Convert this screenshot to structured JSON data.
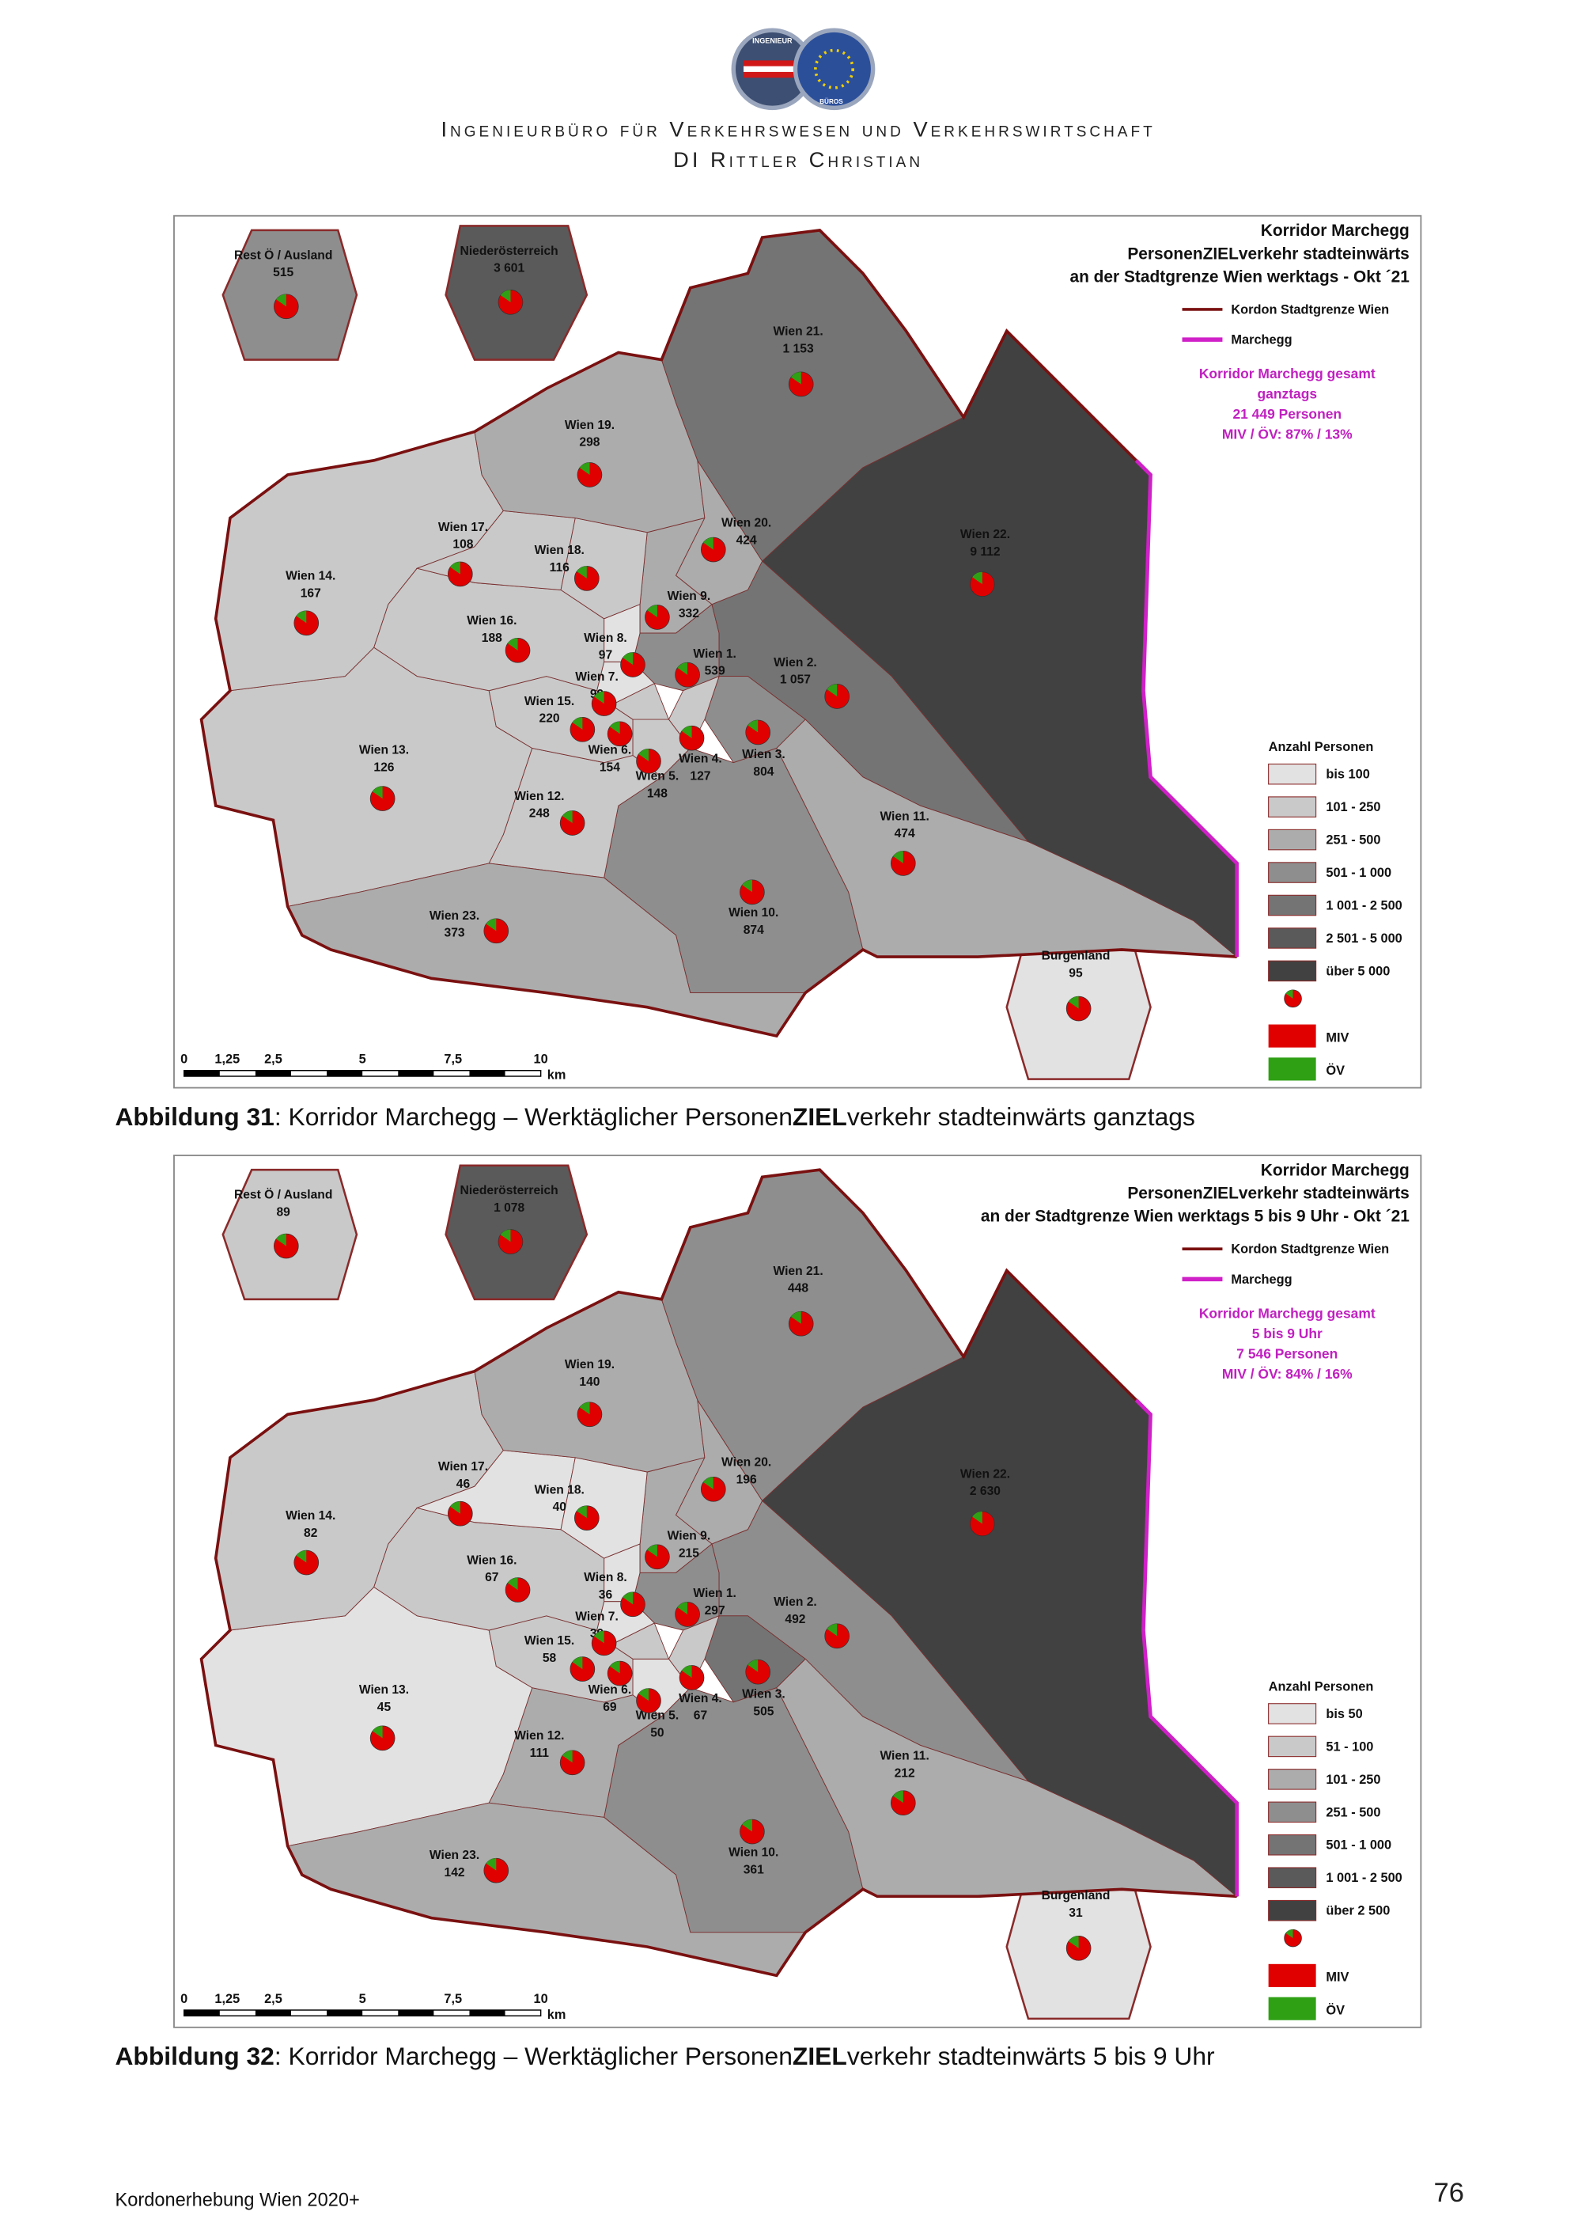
{
  "header": {
    "logo": [
      "INGENIEUR",
      "BÜROS"
    ],
    "title": "Ingenieurbüro für Verkehrswesen und Verkehrswirtschaft",
    "subtitle": "DI Rittler Christian"
  },
  "figures": [
    {
      "map": {
        "title": [
          "Korridor Marchegg",
          "PersonenZIELverkehr stadteinwärts",
          "an der Stadtgrenze Wien werktags - Okt ´21"
        ],
        "legend_lines": [
          {
            "label": "Kordon Stadtgrenze Wien",
            "color": "#7a1010"
          },
          {
            "label": "Marchegg",
            "color": "#d020c8"
          }
        ],
        "total": [
          "Korridor Marchegg gesamt",
          "ganztags",
          "21 449 Personen",
          "MIV / ÖV: 87% / 13%"
        ],
        "legend_title": "Anzahl Personen",
        "classes": [
          {
            "label": "bis 100",
            "color": "#e2e2e2"
          },
          {
            "label": "101 - 250",
            "color": "#c9c9c9"
          },
          {
            "label": "251 - 500",
            "color": "#acacac"
          },
          {
            "label": "501 - 1 000",
            "color": "#8e8e8e"
          },
          {
            "label": "1 001 - 2 500",
            "color": "#747474"
          },
          {
            "label": "2 501 - 5 000",
            "color": "#5a5a5a"
          },
          {
            "label": "über 5 000",
            "color": "#414141"
          }
        ],
        "pie_legend": [
          {
            "label": "MIV",
            "color": "#e00000"
          },
          {
            "label": "ÖV",
            "color": "#2fa014"
          }
        ],
        "scale": [
          "0",
          "1,25",
          "2,5",
          "5",
          "7,5",
          "10"
        ],
        "scale_unit": "km",
        "regions": [
          {
            "name": "Rest Ö / Ausland",
            "value": "515"
          },
          {
            "name": "Niederösterreich",
            "value": "3 601"
          },
          {
            "name": "Burgenland",
            "value": "95"
          },
          {
            "name": "Wien 1.",
            "value": "539"
          },
          {
            "name": "Wien 2.",
            "value": "1 057"
          },
          {
            "name": "Wien 3.",
            "value": "804"
          },
          {
            "name": "Wien 4.",
            "value": "127"
          },
          {
            "name": "Wien 5.",
            "value": "148"
          },
          {
            "name": "Wien 6.",
            "value": "154"
          },
          {
            "name": "Wien 7.",
            "value": "99"
          },
          {
            "name": "Wien 8.",
            "value": "97"
          },
          {
            "name": "Wien 9.",
            "value": "332"
          },
          {
            "name": "Wien 10.",
            "value": "874"
          },
          {
            "name": "Wien 11.",
            "value": "474"
          },
          {
            "name": "Wien 12.",
            "value": "248"
          },
          {
            "name": "Wien 13.",
            "value": "126"
          },
          {
            "name": "Wien 14.",
            "value": "167"
          },
          {
            "name": "Wien 15.",
            "value": "220"
          },
          {
            "name": "Wien 16.",
            "value": "188"
          },
          {
            "name": "Wien 17.",
            "value": "108"
          },
          {
            "name": "Wien 18.",
            "value": "116"
          },
          {
            "name": "Wien 19.",
            "value": "298"
          },
          {
            "name": "Wien 20.",
            "value": "424"
          },
          {
            "name": "Wien 21.",
            "value": "1 153"
          },
          {
            "name": "Wien 22.",
            "value": "9 112"
          },
          {
            "name": "Wien 23.",
            "value": "373"
          }
        ]
      },
      "caption": [
        {
          "text": "Abbildung 31",
          "bold": true
        },
        {
          "text": ":  Korridor Marchegg – Werktäglicher Personen",
          "bold": false
        },
        {
          "text": "ZIEL",
          "bold": true
        },
        {
          "text": "verkehr stadteinwärts ganztags",
          "bold": false
        }
      ]
    },
    {
      "map": {
        "title": [
          "Korridor Marchegg",
          "PersonenZIELverkehr stadteinwärts",
          "an der Stadtgrenze Wien werktags 5 bis 9 Uhr - Okt ´21"
        ],
        "legend_lines": [
          {
            "label": "Kordon Stadtgrenze Wien",
            "color": "#7a1010"
          },
          {
            "label": "Marchegg",
            "color": "#d020c8"
          }
        ],
        "total": [
          "Korridor Marchegg gesamt",
          "5 bis 9 Uhr",
          "7 546 Personen",
          "MIV / ÖV: 84% / 16%"
        ],
        "legend_title": "Anzahl Personen",
        "classes": [
          {
            "label": "bis 50",
            "color": "#e2e2e2"
          },
          {
            "label": "51 - 100",
            "color": "#c9c9c9"
          },
          {
            "label": "101 - 250",
            "color": "#acacac"
          },
          {
            "label": "251 - 500",
            "color": "#8e8e8e"
          },
          {
            "label": "501 - 1 000",
            "color": "#747474"
          },
          {
            "label": "1 001 - 2 500",
            "color": "#5a5a5a"
          },
          {
            "label": "über 2 500",
            "color": "#414141"
          }
        ],
        "pie_legend": [
          {
            "label": "MIV",
            "color": "#e00000"
          },
          {
            "label": "ÖV",
            "color": "#2fa014"
          }
        ],
        "scale": [
          "0",
          "1,25",
          "2,5",
          "5",
          "7,5",
          "10"
        ],
        "scale_unit": "km",
        "regions": [
          {
            "name": "Rest Ö / Ausland",
            "value": "89"
          },
          {
            "name": "Niederösterreich",
            "value": "1 078"
          },
          {
            "name": "Burgenland",
            "value": "31"
          },
          {
            "name": "Wien 1.",
            "value": "297"
          },
          {
            "name": "Wien 2.",
            "value": "492"
          },
          {
            "name": "Wien 3.",
            "value": "505"
          },
          {
            "name": "Wien 4.",
            "value": "67"
          },
          {
            "name": "Wien 5.",
            "value": "50"
          },
          {
            "name": "Wien 6.",
            "value": "69"
          },
          {
            "name": "Wien 7.",
            "value": "39"
          },
          {
            "name": "Wien 8.",
            "value": "36"
          },
          {
            "name": "Wien 9.",
            "value": "215"
          },
          {
            "name": "Wien 10.",
            "value": "361"
          },
          {
            "name": "Wien 11.",
            "value": "212"
          },
          {
            "name": "Wien 12.",
            "value": "111"
          },
          {
            "name": "Wien 13.",
            "value": "45"
          },
          {
            "name": "Wien 14.",
            "value": "82"
          },
          {
            "name": "Wien 15.",
            "value": "58"
          },
          {
            "name": "Wien 16.",
            "value": "67"
          },
          {
            "name": "Wien 17.",
            "value": "46"
          },
          {
            "name": "Wien 18.",
            "value": "40"
          },
          {
            "name": "Wien 19.",
            "value": "140"
          },
          {
            "name": "Wien 20.",
            "value": "196"
          },
          {
            "name": "Wien 21.",
            "value": "448"
          },
          {
            "name": "Wien 22.",
            "value": "2 630"
          },
          {
            "name": "Wien 23.",
            "value": "142"
          }
        ]
      },
      "caption": [
        {
          "text": "Abbildung 32",
          "bold": true
        },
        {
          "text": ":  Korridor Marchegg – Werktäglicher Personen",
          "bold": false
        },
        {
          "text": "ZIEL",
          "bold": true
        },
        {
          "text": "verkehr stadteinwärts 5 bis 9 Uhr",
          "bold": false
        }
      ]
    }
  ],
  "footer": {
    "text": "Kordonerhebung Wien 2020+",
    "page": "76"
  }
}
